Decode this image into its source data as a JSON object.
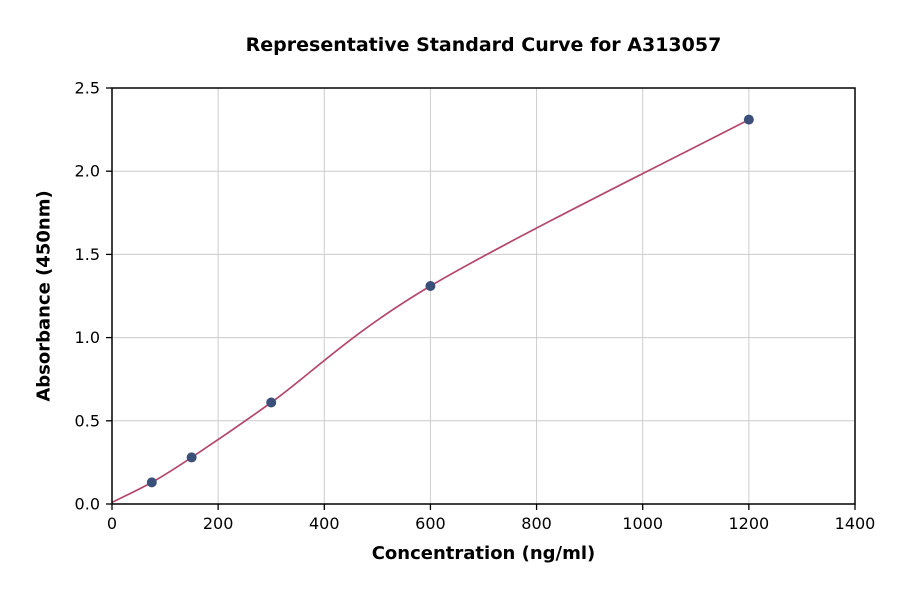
{
  "figure": {
    "background": "#ffffff",
    "axis_color": "#000000",
    "grid_color": "#cccccc"
  },
  "chart_data": {
    "type": "scatter",
    "title": "Representative Standard Curve for A313057",
    "xlabel": "Concentration (ng/ml)",
    "ylabel": "Absorbance (450nm)",
    "xlim": [
      0,
      1400
    ],
    "ylim": [
      0,
      2.5
    ],
    "xticks": [
      0,
      200,
      400,
      600,
      800,
      1000,
      1200,
      1400
    ],
    "yticks": [
      0,
      0.5,
      1,
      1.5,
      2,
      2.5
    ],
    "grid": true,
    "legend": "none",
    "series": [
      {
        "name": "standard-points",
        "type": "scatter",
        "color": "#3a5078",
        "marker_radius": 5,
        "x": [
          75,
          150,
          300,
          600,
          1200
        ],
        "y": [
          0.13,
          0.28,
          0.61,
          1.31,
          2.31
        ]
      },
      {
        "name": "fitted-curve",
        "type": "line",
        "color": "#b4486c",
        "line_width": 1.7,
        "x": [
          0,
          75,
          150,
          300,
          600,
          1200
        ],
        "y": [
          0.01,
          0.13,
          0.28,
          0.61,
          1.31,
          2.31
        ]
      }
    ]
  }
}
